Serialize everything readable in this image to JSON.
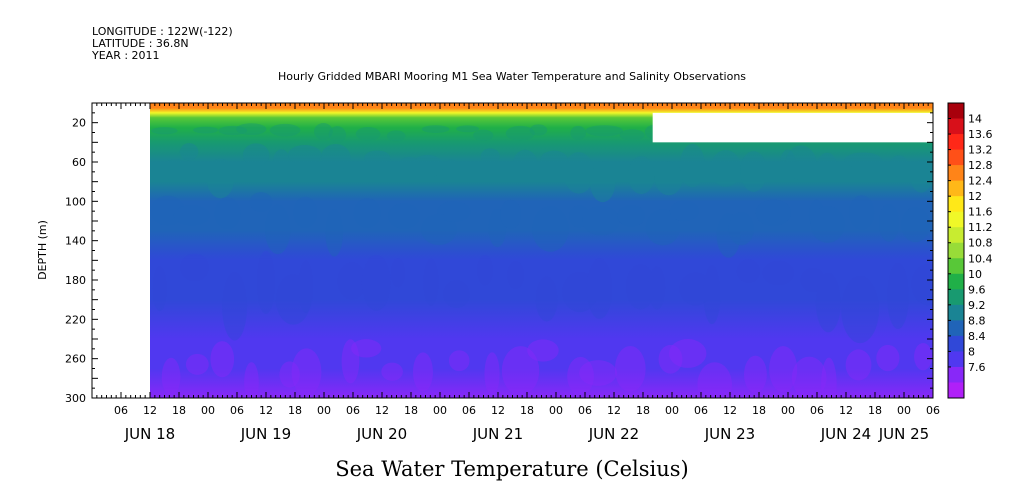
{
  "header": {
    "longitude": "LONGITUDE : 122W(-122)",
    "latitude": "LATITUDE : 36.8N",
    "year": "YEAR : 2011"
  },
  "chart_data": {
    "type": "heatmap",
    "title": "Hourly Gridded MBARI Mooring M1 Sea Water Temperature and Salinity Observations",
    "subtitle": "Sea Water Temperature (Celsius)",
    "ylabel": "DEPTH (m)",
    "ylim": [
      300,
      0
    ],
    "y_reversed": true,
    "y_ticks": [
      20,
      60,
      100,
      140,
      180,
      220,
      260,
      300
    ],
    "x_range_hours": [
      0,
      168
    ],
    "x_hour_ticks": [
      "06",
      "12",
      "18",
      "00",
      "06",
      "12",
      "18",
      "00",
      "06",
      "12",
      "18",
      "00",
      "06",
      "12",
      "18",
      "00",
      "06",
      "12",
      "18",
      "00",
      "06",
      "12",
      "18",
      "00",
      "06",
      "12",
      "18",
      "00",
      "06"
    ],
    "x_hour_tick_values": [
      6,
      12,
      18,
      24,
      30,
      36,
      42,
      48,
      54,
      60,
      66,
      72,
      78,
      84,
      90,
      96,
      102,
      108,
      114,
      120,
      126,
      132,
      138,
      144,
      150,
      156,
      162,
      168,
      174
    ],
    "x_date_labels": [
      {
        "label": "JUN 18",
        "hour": 12
      },
      {
        "label": "JUN 19",
        "hour": 36
      },
      {
        "label": "JUN 20",
        "hour": 60
      },
      {
        "label": "JUN 21",
        "hour": 84
      },
      {
        "label": "JUN 22",
        "hour": 108
      },
      {
        "label": "JUN 23",
        "hour": 132
      },
      {
        "label": "JUN 24",
        "hour": 156
      },
      {
        "label": "JUN 25",
        "hour": 168
      }
    ],
    "data_start_hour": 12,
    "missing_regions": [
      {
        "x_start_hour": 0,
        "x_end_hour": 12,
        "depth_top": 0,
        "depth_bottom": 300
      },
      {
        "x_start_hour": 116,
        "x_end_hour": 174,
        "depth_top": 10,
        "depth_bottom": 40
      }
    ],
    "depth_profile": [
      {
        "depth": 5,
        "value": 12.6
      },
      {
        "depth": 10,
        "value": 11.6
      },
      {
        "depth": 15,
        "value": 10.6
      },
      {
        "depth": 25,
        "value": 10.0
      },
      {
        "depth": 40,
        "value": 9.6
      },
      {
        "depth": 60,
        "value": 9.4
      },
      {
        "depth": 80,
        "value": 9.2
      },
      {
        "depth": 100,
        "value": 9.0
      },
      {
        "depth": 130,
        "value": 8.8
      },
      {
        "depth": 160,
        "value": 8.6
      },
      {
        "depth": 200,
        "value": 8.4
      },
      {
        "depth": 240,
        "value": 8.2
      },
      {
        "depth": 270,
        "value": 8.0
      },
      {
        "depth": 300,
        "value": 7.8
      }
    ],
    "colorbar": {
      "min": 7.6,
      "max": 14,
      "levels": [
        "14",
        "13.6",
        "13.2",
        "12.8",
        "12.4",
        "12",
        "11.6",
        "11.2",
        "10.8",
        "10.4",
        "10",
        "9.6",
        "9.2",
        "8.8",
        "8.4",
        "8",
        "7.6"
      ],
      "colors": [
        "#a8000c",
        "#d8101a",
        "#ff2818",
        "#ff5018",
        "#ff8418",
        "#ffb818",
        "#ffe818",
        "#f0f828",
        "#c8ec30",
        "#98dc38",
        "#58c838",
        "#20b048",
        "#189a70",
        "#1a8494",
        "#2064b8",
        "#3048d8",
        "#5038f0",
        "#8828f8",
        "#b020f8"
      ]
    }
  }
}
